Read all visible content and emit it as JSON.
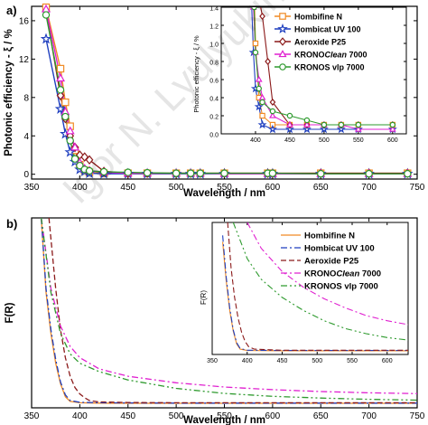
{
  "chart_data": [
    {
      "panel_label": "a)",
      "type": "line",
      "xlabel": "Wavelength / nm",
      "ylabel": "Photonic efficiency - ξ / %",
      "xlim": [
        350,
        750
      ],
      "ylim": [
        -0.5,
        17.5
      ],
      "xticks": [
        350,
        400,
        450,
        500,
        550,
        600,
        650,
        700,
        750
      ],
      "yticks": [
        0,
        4,
        8,
        12,
        16
      ],
      "grid": false,
      "legend": "inside inset",
      "series": [
        {
          "name": "Hombifine N",
          "color": "#f08a24",
          "marker": "square",
          "x": [
            365,
            380,
            385,
            390,
            395,
            400,
            405,
            410,
            425,
            450,
            470,
            500,
            515,
            525,
            550,
            595,
            600,
            650,
            700,
            740
          ],
          "y": [
            17.4,
            11.0,
            7.5,
            5.0,
            2.5,
            1.0,
            0.4,
            0.2,
            0.1,
            0.1,
            0.1,
            0.1,
            0.1,
            0.1,
            0.1,
            0.1,
            0.1,
            0.1,
            0.1,
            0.1
          ]
        },
        {
          "name": "Hombicat UV 100",
          "color": "#1f3fbf",
          "marker": "star",
          "x": [
            365,
            380,
            385,
            390,
            395,
            400,
            405,
            410,
            425,
            450,
            470,
            500,
            515,
            525,
            550,
            595,
            600,
            650,
            700,
            740
          ],
          "y": [
            14.1,
            6.8,
            4.2,
            2.3,
            1.3,
            0.5,
            0.3,
            0.1,
            0.05,
            0.05,
            0.05,
            0.05,
            0.05,
            0.05,
            0.05,
            0.05,
            0.05,
            0.05,
            0.05,
            0.05
          ]
        },
        {
          "name": "Aeroxide P25",
          "color": "#8b1a1a",
          "marker": "diamond",
          "x": [
            365,
            380,
            385,
            390,
            395,
            400,
            405,
            410,
            425,
            450,
            470,
            500,
            515,
            525,
            550,
            595,
            600,
            650,
            700,
            740
          ],
          "y": [
            17.0,
            8.2,
            5.8,
            4.0,
            2.8,
            2.0,
            1.8,
            1.5,
            0.3,
            0.1,
            0.1,
            0.1,
            0.1,
            0.1,
            0.1,
            0.1,
            0.1,
            0.1,
            0.1,
            0.1
          ]
        },
        {
          "name": "KRONOClean 7000",
          "color": "#e020d0",
          "marker": "triangle",
          "x": [
            365,
            380,
            385,
            390,
            395,
            400,
            405,
            410,
            425,
            450,
            470,
            500,
            515,
            525,
            550,
            595,
            600,
            650,
            700,
            740
          ],
          "y": [
            17.2,
            10.0,
            6.5,
            4.5,
            2.8,
            1.2,
            0.6,
            0.4,
            0.2,
            0.1,
            0.1,
            0.1,
            0.1,
            0.1,
            0.05,
            0.05,
            0.05,
            0.05,
            0.05,
            0.05
          ]
        },
        {
          "name": "KRONOS vlp 7000",
          "color": "#2e9a2e",
          "marker": "circle",
          "x": [
            365,
            380,
            385,
            390,
            395,
            400,
            405,
            410,
            425,
            450,
            470,
            500,
            515,
            525,
            550,
            595,
            600,
            650,
            700,
            740
          ],
          "y": [
            16.6,
            8.8,
            6.0,
            3.5,
            1.6,
            0.9,
            0.5,
            0.35,
            0.25,
            0.2,
            0.15,
            0.1,
            0.1,
            0.1,
            0.1,
            0.1,
            0.1,
            0.05,
            0.05,
            0.05
          ]
        }
      ]
    },
    {
      "panel_label": "",
      "type": "line",
      "role": "inset",
      "xlabel": "",
      "ylabel": "Photonic efficiency - ξ / %",
      "xlim": [
        350,
        620
      ],
      "ylim": [
        0,
        1.4
      ],
      "xticks": [
        400,
        450,
        500,
        550,
        600
      ],
      "yticks": [
        0.0,
        0.2,
        0.4,
        0.6,
        0.8,
        1.0,
        1.2,
        1.4
      ],
      "grid": false,
      "series": [
        {
          "name": "Hombifine N",
          "x": [
            395,
            400,
            405,
            410,
            425,
            450,
            475,
            500,
            525,
            550,
            600
          ],
          "y": [
            2.5,
            1.0,
            0.4,
            0.2,
            0.1,
            0.1,
            0.1,
            0.1,
            0.1,
            0.1,
            0.1
          ]
        },
        {
          "name": "Hombicat UV 100",
          "x": [
            393,
            397,
            400,
            405,
            410,
            425,
            450,
            475,
            500,
            525,
            550,
            600
          ],
          "y": [
            1.7,
            0.9,
            0.5,
            0.3,
            0.1,
            0.05,
            0.05,
            0.05,
            0.05,
            0.05,
            0.05,
            0.05
          ]
        },
        {
          "name": "Aeroxide P25",
          "x": [
            405,
            410,
            418,
            425,
            450,
            475,
            500,
            525,
            550,
            600
          ],
          "y": [
            1.5,
            1.3,
            0.8,
            0.35,
            0.1,
            0.1,
            0.1,
            0.1,
            0.1,
            0.1
          ]
        },
        {
          "name": "KRONOClean 7000",
          "x": [
            397,
            400,
            405,
            410,
            425,
            450,
            475,
            500,
            525,
            550,
            600
          ],
          "y": [
            1.4,
            0.9,
            0.6,
            0.4,
            0.2,
            0.1,
            0.1,
            0.1,
            0.1,
            0.05,
            0.05
          ]
        },
        {
          "name": "KRONOS vlp 7000",
          "x": [
            398,
            400,
            405,
            410,
            425,
            450,
            475,
            500,
            525,
            550,
            600
          ],
          "y": [
            1.4,
            0.9,
            0.5,
            0.35,
            0.25,
            0.2,
            0.15,
            0.1,
            0.1,
            0.1,
            0.1
          ]
        }
      ]
    },
    {
      "panel_label": "b)",
      "type": "line",
      "xlabel": "Wavelength / nm",
      "ylabel": "F(R)",
      "xlim": [
        350,
        750
      ],
      "xticks": [
        350,
        400,
        450,
        500,
        550,
        600,
        650,
        700,
        750
      ],
      "yticks": [],
      "grid": false,
      "legend": "top-right",
      "series": [
        {
          "name": "Hombifine N",
          "color": "#f08a24",
          "dash": "solid",
          "x": [
            360,
            365,
            370,
            375,
            380,
            385,
            390,
            400,
            420,
            450,
            500,
            600,
            750
          ],
          "y": [
            1.0,
            0.6,
            0.38,
            0.22,
            0.11,
            0.04,
            0.015,
            0.008,
            0.006,
            0.005,
            0.005,
            0.005,
            0.005
          ]
        },
        {
          "name": "Hombicat UV 100",
          "color": "#1f3fbf",
          "dash": "dash-dot",
          "x": [
            360,
            365,
            370,
            375,
            380,
            385,
            390,
            400,
            420,
            450,
            500,
            600,
            750
          ],
          "y": [
            1.0,
            0.62,
            0.4,
            0.24,
            0.12,
            0.05,
            0.02,
            0.01,
            0.008,
            0.007,
            0.006,
            0.006,
            0.006
          ]
        },
        {
          "name": "Aeroxide P25",
          "color": "#8b1a1a",
          "dash": "dashed",
          "x": [
            368,
            375,
            380,
            385,
            390,
            395,
            400,
            405,
            410,
            420,
            450,
            500,
            600,
            750
          ],
          "y": [
            1.0,
            0.62,
            0.4,
            0.25,
            0.15,
            0.09,
            0.055,
            0.035,
            0.02,
            0.012,
            0.009,
            0.008,
            0.008,
            0.008
          ]
        },
        {
          "name": "KRONOClean 7000",
          "color": "#e020d0",
          "dash": "dash-dot",
          "x": [
            360,
            370,
            380,
            390,
            400,
            420,
            450,
            500,
            550,
            600,
            650,
            700,
            750
          ],
          "y": [
            1.0,
            0.62,
            0.42,
            0.31,
            0.25,
            0.19,
            0.15,
            0.115,
            0.092,
            0.078,
            0.068,
            0.061,
            0.057
          ]
        },
        {
          "name": "KRONOS vlp 7000",
          "color": "#2e9a2e",
          "dash": "dash-dot-dot",
          "x": [
            360,
            370,
            380,
            390,
            400,
            420,
            450,
            500,
            550,
            600,
            650,
            700,
            750
          ],
          "y": [
            1.0,
            0.6,
            0.38,
            0.27,
            0.22,
            0.175,
            0.13,
            0.085,
            0.058,
            0.042,
            0.033,
            0.026,
            0.022
          ]
        }
      ]
    },
    {
      "panel_label": "",
      "type": "line",
      "role": "inset",
      "xlabel": "",
      "ylabel": "F(R)",
      "xlim": [
        350,
        630
      ],
      "xticks": [
        350,
        400,
        450,
        500,
        550,
        600
      ],
      "yticks": [],
      "grid": false,
      "series": [
        {
          "name": "Hombifine N",
          "x": [
            365,
            370,
            375,
            380,
            385,
            390,
            400,
            450,
            500,
            630
          ],
          "y": [
            0.85,
            0.55,
            0.32,
            0.16,
            0.06,
            0.02,
            0.01,
            0.008,
            0.008,
            0.008
          ]
        },
        {
          "name": "Hombicat UV 100",
          "x": [
            365,
            370,
            375,
            380,
            385,
            390,
            400,
            450,
            500,
            630
          ],
          "y": [
            0.9,
            0.58,
            0.34,
            0.17,
            0.07,
            0.025,
            0.012,
            0.01,
            0.01,
            0.01
          ]
        },
        {
          "name": "Aeroxide P25",
          "x": [
            372,
            377,
            382,
            387,
            392,
            397,
            402,
            410,
            450,
            500,
            630
          ],
          "y": [
            1.0,
            0.65,
            0.42,
            0.26,
            0.15,
            0.08,
            0.04,
            0.02,
            0.012,
            0.012,
            0.012
          ]
        },
        {
          "name": "KRONOClean 7000",
          "x": [
            400,
            420,
            450,
            480,
            510,
            540,
            570,
            600,
            630
          ],
          "y": [
            1.0,
            0.8,
            0.62,
            0.5,
            0.41,
            0.34,
            0.28,
            0.24,
            0.21
          ]
        },
        {
          "name": "KRONOS vlp 7000",
          "x": [
            380,
            400,
            420,
            450,
            480,
            510,
            540,
            570,
            600,
            630
          ],
          "y": [
            1.0,
            0.72,
            0.56,
            0.42,
            0.32,
            0.24,
            0.18,
            0.14,
            0.11,
            0.09
          ]
        }
      ]
    }
  ],
  "watermark": "Igor N. Lyulyukin"
}
